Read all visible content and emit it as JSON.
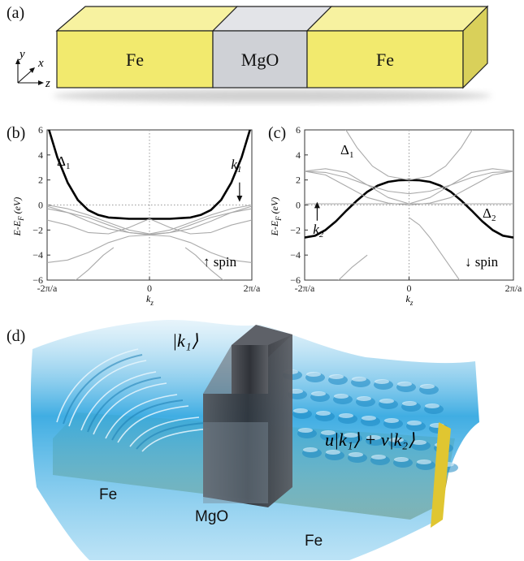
{
  "panel_a": {
    "label": "(a)",
    "blocks": [
      {
        "name": "Fe",
        "color": "#f2ea6e"
      },
      {
        "name": "MgO",
        "color": "#cfd1d6"
      },
      {
        "name": "Fe",
        "color": "#f2ea6e"
      }
    ],
    "axes": {
      "y": "y",
      "x": "x",
      "z": "z"
    }
  },
  "chart_data": [
    {
      "type": "line",
      "panel": "(b)",
      "ylabel": "E-E",
      "ylabel_sub": "F",
      "ylabel_unit": " (eV)",
      "xlabel": "k",
      "xlabel_sub": "z",
      "ylim": [
        -6,
        6
      ],
      "yticks": [
        "-6",
        "-4",
        "-2",
        "0",
        "2",
        "4",
        "6"
      ],
      "xticks": [
        "-2π/a",
        "0",
        "2π/a"
      ],
      "band_label": "Δ",
      "band_label_sub": "1",
      "k_label": "k",
      "k_label_sub": "1",
      "spin_label": "↑ spin",
      "series": [
        {
          "highlight": true,
          "x": [
            -1.0,
            -0.9,
            -0.8,
            -0.7,
            -0.6,
            -0.5,
            -0.4,
            -0.3,
            -0.2,
            -0.1,
            0.0,
            0.1,
            0.2,
            0.3,
            0.4,
            0.5,
            0.6,
            0.7,
            0.8,
            0.9,
            1.0
          ],
          "y": [
            6.5,
            3.8,
            1.8,
            0.4,
            -0.4,
            -0.8,
            -1.0,
            -1.05,
            -1.1,
            -1.1,
            -1.1,
            -1.1,
            -1.1,
            -1.05,
            -1.0,
            -0.8,
            -0.4,
            0.4,
            1.8,
            3.8,
            6.5
          ]
        },
        {
          "x": [
            -1.0,
            -0.8,
            -0.6,
            -0.4,
            -0.2,
            0.0,
            0.2,
            0.4,
            0.6,
            0.8,
            1.0
          ],
          "y": [
            0.0,
            -0.3,
            -0.8,
            -1.4,
            -2.0,
            -2.3,
            -2.0,
            -1.4,
            -0.8,
            -0.3,
            0.0
          ]
        },
        {
          "x": [
            -1.0,
            -0.8,
            -0.6,
            -0.4,
            -0.2,
            0.0,
            0.2,
            0.4,
            0.6,
            0.8,
            1.0
          ],
          "y": [
            -0.1,
            -0.6,
            -1.3,
            -1.9,
            -2.2,
            -2.35,
            -2.2,
            -1.9,
            -1.3,
            -0.6,
            -0.1
          ]
        },
        {
          "x": [
            -1.0,
            -0.8,
            -0.6,
            -0.4,
            -0.2,
            0.0,
            0.2,
            0.4,
            0.6,
            0.8,
            1.0
          ],
          "y": [
            -0.3,
            -0.6,
            -1.0,
            -1.6,
            -2.2,
            -2.4,
            -2.2,
            -1.6,
            -1.0,
            -0.6,
            -0.3
          ]
        },
        {
          "x": [
            -1.0,
            -0.8,
            -0.6,
            -0.4,
            -0.2,
            0.0,
            0.2,
            0.4,
            0.6,
            0.8,
            1.0
          ],
          "y": [
            -4.6,
            -4.4,
            -3.8,
            -3.0,
            -2.5,
            -2.4,
            -2.5,
            -3.0,
            -3.8,
            -4.4,
            -4.6
          ]
        },
        {
          "x": [
            -1.0,
            -0.8,
            -0.6,
            -0.4,
            -0.2,
            0.0,
            0.2,
            0.4,
            0.6,
            0.8,
            1.0
          ],
          "y": [
            -1.2,
            -1.6,
            -2.2,
            -2.3,
            -1.8,
            -1.1,
            -1.8,
            -2.3,
            -2.2,
            -1.6,
            -1.2
          ]
        },
        {
          "x": [
            -0.75,
            -0.6,
            -0.45,
            -0.35
          ],
          "y": [
            -6.2,
            -5.2,
            -4.0,
            -3.4
          ]
        },
        {
          "x": [
            0.35,
            0.45,
            0.6,
            0.75
          ],
          "y": [
            -3.4,
            -4.0,
            -5.2,
            -6.2
          ]
        }
      ]
    },
    {
      "type": "line",
      "panel": "(c)",
      "ylabel": "E-E",
      "ylabel_sub": "F",
      "ylabel_unit": " (eV)",
      "xlabel": "k",
      "xlabel_sub": "z",
      "ylim": [
        -6,
        6
      ],
      "yticks": [
        "-6",
        "-4",
        "-2",
        "0",
        "2",
        "4",
        "6"
      ],
      "xticks": [
        "-2π/a",
        "0",
        "2π/a"
      ],
      "band_label": "Δ",
      "band_label_sub": "1",
      "band_label2": "Δ",
      "band_label2_sub": "2",
      "k_label": "k",
      "k_label_sub": "2",
      "spin_label": "↓ spin",
      "series": [
        {
          "highlight": true,
          "x": [
            -1.0,
            -0.9,
            -0.8,
            -0.7,
            -0.6,
            -0.5,
            -0.4,
            -0.3,
            -0.2,
            -0.1,
            0.0,
            0.1,
            0.2,
            0.3,
            0.4,
            0.5,
            0.6,
            0.7,
            0.8,
            0.9,
            1.0
          ],
          "y": [
            -2.6,
            -2.45,
            -2.0,
            -1.3,
            -0.45,
            0.35,
            1.05,
            1.55,
            1.85,
            1.97,
            2.0,
            1.97,
            1.85,
            1.55,
            1.05,
            0.35,
            -0.45,
            -1.3,
            -2.0,
            -2.45,
            -2.6
          ]
        },
        {
          "x": [
            -0.62,
            -0.5,
            -0.35,
            -0.2,
            0.0,
            0.2,
            0.35,
            0.5,
            0.62
          ],
          "y": [
            6.2,
            4.6,
            3.1,
            2.3,
            2.0,
            2.3,
            3.1,
            4.6,
            6.2
          ]
        },
        {
          "x": [
            -1.0,
            -0.8,
            -0.6,
            -0.4,
            -0.2,
            0.0,
            0.2,
            0.4,
            0.6,
            0.8,
            1.0
          ],
          "y": [
            2.7,
            2.9,
            2.6,
            1.6,
            0.6,
            0.1,
            0.6,
            1.6,
            2.6,
            2.9,
            2.7
          ]
        },
        {
          "x": [
            -1.0,
            -0.8,
            -0.6,
            -0.4,
            -0.2,
            0.0,
            0.2,
            0.4,
            0.6,
            0.8,
            1.0
          ],
          "y": [
            2.7,
            2.4,
            1.5,
            0.6,
            0.15,
            0.0,
            0.15,
            0.6,
            1.5,
            2.4,
            2.7
          ]
        },
        {
          "x": [
            -1.0,
            -0.8,
            -0.6,
            -0.4,
            -0.2,
            0.0,
            0.2,
            0.4,
            0.6,
            0.8,
            1.0
          ],
          "y": [
            2.7,
            2.6,
            2.2,
            1.6,
            1.1,
            0.9,
            1.1,
            1.6,
            2.2,
            2.6,
            2.7
          ]
        },
        {
          "x": [
            -1.0,
            -0.8,
            -0.6,
            -0.4,
            -0.2,
            0.0,
            0.2,
            0.4,
            0.6,
            0.8,
            1.0
          ],
          "y": [
            0.1,
            0.1,
            0.1,
            0.1,
            0.1,
            0.1,
            0.1,
            0.1,
            0.1,
            0.1,
            0.1
          ]
        },
        {
          "x": [
            0.0,
            0.1,
            0.2,
            0.3,
            0.4,
            0.5
          ],
          "y": [
            -1.0,
            -1.6,
            -2.6,
            -3.8,
            -5.0,
            -6.2
          ]
        },
        {
          "x": [
            -0.7,
            -0.55,
            -0.4
          ],
          "y": [
            -6.2,
            -5.0,
            -4.0
          ]
        }
      ]
    }
  ],
  "panel_d": {
    "label": "(d)",
    "ket_left": "|k₁⟩",
    "ket_right": "u|k₁⟩ + v|k₂⟩",
    "fe_left": "Fe",
    "mgo": "MgO",
    "fe_right": "Fe",
    "wave_color": "#36a9e1",
    "barrier_color": "#3a3d44",
    "fe_color": "#d7c23a"
  }
}
